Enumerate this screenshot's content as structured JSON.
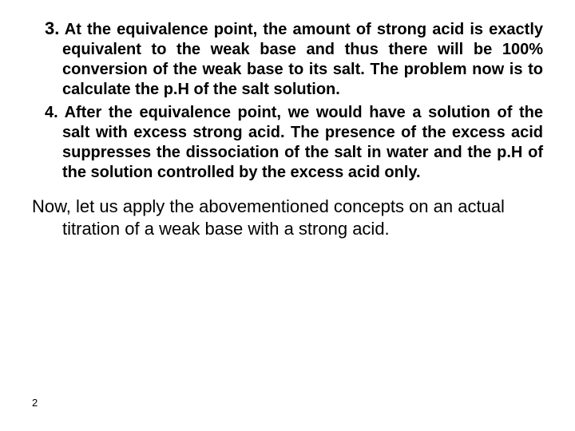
{
  "item3": {
    "number": "3.",
    "text": "At the equivalence point, the amount of strong acid is exactly equivalent to the weak base and thus there will be 100% conversion of the weak base to its salt. The problem now is to calculate the p.H of the salt solution."
  },
  "item4": {
    "number": "4.",
    "text": "After the equivalence point, we would have a solution of the salt with excess strong acid. The presence of the excess acid suppresses the dissociation of the salt in water and the p.H of the solution controlled by the excess acid only."
  },
  "closing": "Now, let us apply the abovementioned concepts on an actual titration of a weak base with a strong acid.",
  "pageNumber": "2",
  "style": {
    "background_color": "#ffffff",
    "text_color": "#000000",
    "font_family": "Arial",
    "bold_fontsize": 20,
    "num3_fontsize": 22,
    "closing_fontsize": 22,
    "pagenum_fontsize": 13,
    "alignment": "justify"
  }
}
